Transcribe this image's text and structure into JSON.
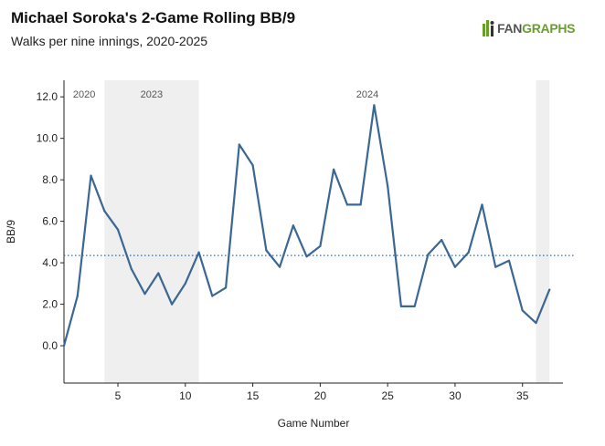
{
  "header": {
    "title": "Michael Soroka's 2-Game Rolling BB/9",
    "subtitle": "Walks per nine innings, 2020-2025"
  },
  "logo": {
    "text_fan": "FAN",
    "text_graphs": "GRAPHS",
    "icon": "fangraphs-logo-icon"
  },
  "colors": {
    "line": "#3a6794",
    "reference_line": "#3a6794",
    "season_shade": "#efefef",
    "axis": "#222222",
    "logo_green": "#6a9e2a"
  },
  "chart_data": {
    "type": "line",
    "title": "Michael Soroka's 2-Game Rolling BB/9",
    "subtitle": "Walks per nine innings, 2020-2025",
    "xlabel": "Game Number",
    "ylabel": "BB/9",
    "xlim": [
      1,
      38
    ],
    "ylim": [
      -1.8,
      12.8
    ],
    "x_ticks": [
      5,
      10,
      15,
      20,
      25,
      30,
      35
    ],
    "y_ticks": [
      0.0,
      2.0,
      4.0,
      6.0,
      8.0,
      10.0,
      12.0
    ],
    "y_tick_labels": [
      "0.0",
      "2.0",
      "4.0",
      "6.0",
      "8.0",
      "10.0",
      "12.0"
    ],
    "grid": false,
    "reference_line": {
      "y": 4.35,
      "style": "dotted"
    },
    "season_spans": [
      {
        "label": "2020",
        "start": 1,
        "end": 4,
        "shaded": false
      },
      {
        "label": "2023",
        "start": 4,
        "end": 11,
        "shaded": true
      },
      {
        "label": "2024",
        "start": 11,
        "end": 36,
        "shaded": false
      },
      {
        "label": "",
        "start": 36,
        "end": 37,
        "shaded": true
      }
    ],
    "series": [
      {
        "x": [
          1,
          2,
          3,
          4,
          5,
          6,
          7,
          8,
          9,
          10,
          11,
          12,
          13,
          14,
          15,
          16,
          17,
          18,
          19,
          20,
          21,
          22,
          23,
          24,
          25,
          26,
          27,
          28,
          29,
          30,
          31,
          32,
          33,
          34,
          35,
          36,
          37
        ],
        "values": [
          0.0,
          2.4,
          8.2,
          6.5,
          5.6,
          3.7,
          2.5,
          3.5,
          2.0,
          3.0,
          4.5,
          2.4,
          2.8,
          9.7,
          8.7,
          4.6,
          3.8,
          5.8,
          4.3,
          4.8,
          8.5,
          6.8,
          6.8,
          11.6,
          7.7,
          1.9,
          1.9,
          4.4,
          5.1,
          3.8,
          4.5,
          6.8,
          3.8,
          4.1,
          1.7,
          1.1,
          2.7
        ]
      }
    ]
  }
}
